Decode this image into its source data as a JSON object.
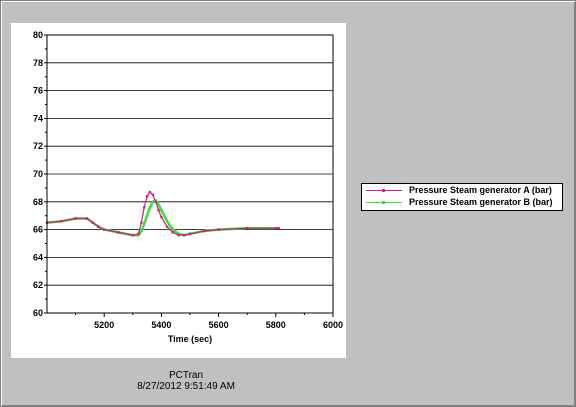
{
  "footer": {
    "app_name": "PCTran",
    "timestamp": "8/27/2012 9:51:49 AM"
  },
  "chart_data": {
    "type": "line",
    "title": "",
    "xlabel": "Time (sec)",
    "ylabel": "",
    "xlim": [
      5000,
      6000
    ],
    "ylim": [
      60,
      80
    ],
    "x_ticks": [
      5200,
      5400,
      5600,
      5800,
      6000
    ],
    "y_ticks": [
      60,
      62,
      64,
      66,
      68,
      70,
      72,
      74,
      76,
      78,
      80
    ],
    "grid": "horizontal",
    "legend_position": "right",
    "series": [
      {
        "name": "Pressure Steam generator A (bar)",
        "color": "#e0148c",
        "x": [
          5000,
          5050,
          5100,
          5140,
          5160,
          5180,
          5200,
          5250,
          5300,
          5320,
          5330,
          5340,
          5350,
          5360,
          5370,
          5380,
          5390,
          5400,
          5420,
          5440,
          5460,
          5480,
          5500,
          5550,
          5600,
          5700,
          5800,
          5810
        ],
        "values": [
          66.5,
          66.6,
          66.8,
          66.8,
          66.5,
          66.2,
          66.0,
          65.8,
          65.6,
          65.7,
          66.5,
          67.6,
          68.4,
          68.7,
          68.5,
          68.0,
          67.4,
          66.9,
          66.2,
          65.8,
          65.6,
          65.6,
          65.7,
          65.9,
          66.0,
          66.1,
          66.1,
          66.1
        ]
      },
      {
        "name": "Pressure Steam generator B (bar)",
        "color": "#2ee82e",
        "x": [
          5000,
          5050,
          5100,
          5140,
          5160,
          5180,
          5200,
          5250,
          5300,
          5320,
          5330,
          5340,
          5350,
          5360,
          5370,
          5380,
          5390,
          5400,
          5420,
          5440,
          5460,
          5480,
          5500,
          5550,
          5600,
          5700,
          5800,
          5810
        ],
        "values": [
          66.5,
          66.6,
          66.8,
          66.8,
          66.5,
          66.2,
          66.0,
          65.8,
          65.6,
          65.6,
          65.9,
          66.4,
          67.0,
          67.6,
          68.0,
          68.1,
          67.8,
          67.4,
          66.6,
          66.0,
          65.7,
          65.6,
          65.7,
          65.9,
          66.0,
          66.1,
          66.1,
          66.1
        ]
      }
    ]
  }
}
